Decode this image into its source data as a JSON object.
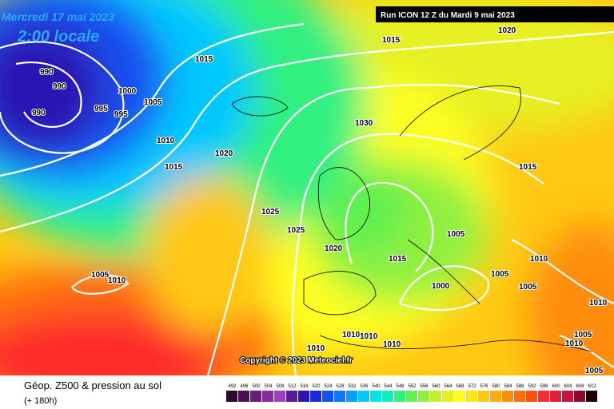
{
  "header": {
    "date": "Mercredi 17 mai 2023",
    "time": "2:00 locale",
    "run": "Run ICON 12 Z du Mardi 9 mai 2023",
    "copyright": "Copyright © 2023 Meteociel.fr"
  },
  "footer": {
    "title": "Géop. Z500 & pression au sol",
    "lead": "(+ 180h)"
  },
  "isobar_labels": [
    "990",
    "990",
    "990",
    "995",
    "995",
    "1000",
    "1005",
    "1010",
    "1015",
    "1015",
    "1015",
    "1020",
    "1020",
    "1030",
    "1025",
    "1025",
    "1020",
    "1015",
    "1005",
    "1015",
    "1010",
    "1005",
    "1005",
    "1000",
    "1005",
    "1010",
    "1010",
    "1010",
    "1010",
    "1010",
    "1010",
    "1005",
    "1010",
    "1005"
  ],
  "scale": {
    "labels": [
      "492",
      "496",
      "500",
      "504",
      "508",
      "512",
      "516",
      "520",
      "524",
      "528",
      "532",
      "536",
      "540",
      "544",
      "548",
      "552",
      "556",
      "560",
      "564",
      "568",
      "572",
      "576",
      "580",
      "584",
      "588",
      "592",
      "596",
      "600",
      "604",
      "608",
      "612"
    ],
    "colors": [
      "#2b0a2e",
      "#4b1050",
      "#6b1d78",
      "#8a2aa0",
      "#a23fbf",
      "#5a1a9a",
      "#2a14b4",
      "#1a2ad8",
      "#1450f0",
      "#0a78ff",
      "#00a0ff",
      "#00c8ff",
      "#00e6e6",
      "#10f0b4",
      "#30f080",
      "#60f050",
      "#90f040",
      "#c0f030",
      "#e6f020",
      "#ffff20",
      "#ffe61a",
      "#ffc814",
      "#ffaa10",
      "#ff8c0a",
      "#ff6e0a",
      "#ff4c10",
      "#ff2a2a",
      "#e61e3c",
      "#c8143c",
      "#8c0a28",
      "#1a0000"
    ]
  }
}
